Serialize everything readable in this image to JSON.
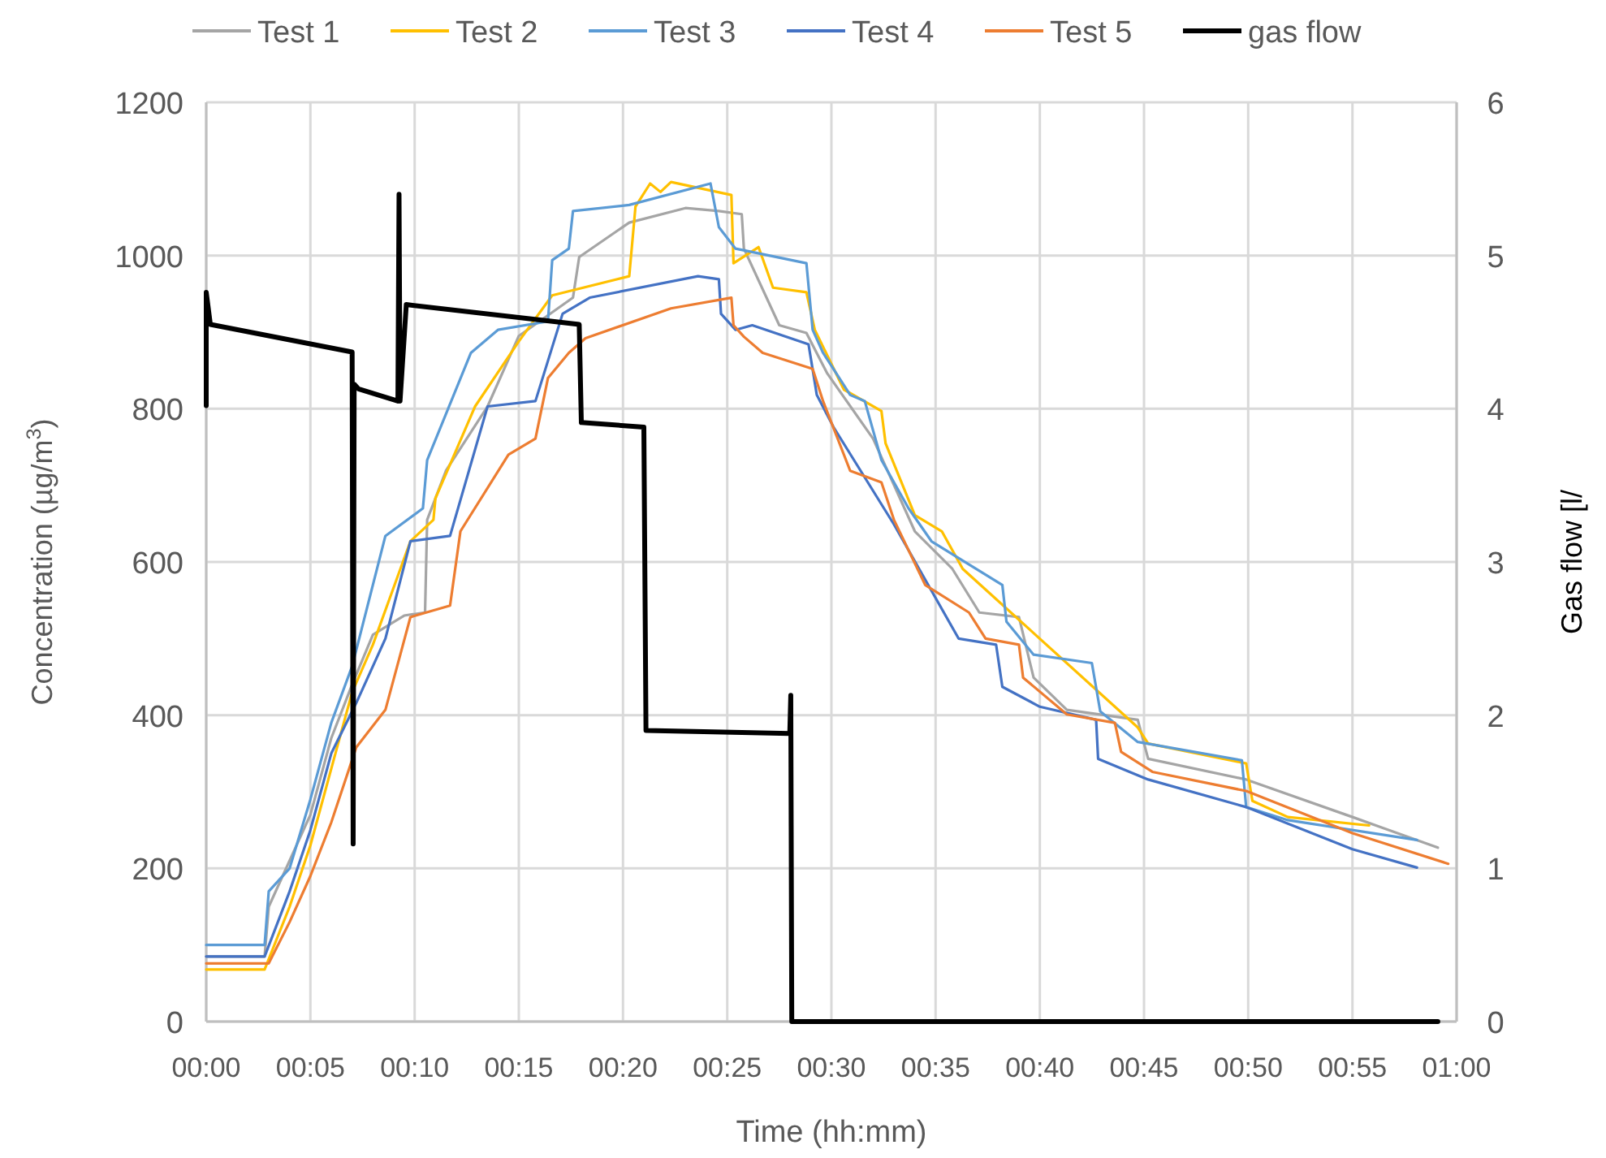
{
  "chart_data": {
    "type": "line",
    "xlabel": "Time (hh:mm)",
    "ylabel": "Concentration (µg/m$^{3}$)",
    "y2label": "Gas flow [l/",
    "xlim": [
      0,
      1
    ],
    "xticks": [
      {
        "value": 0,
        "label": "00:00"
      },
      {
        "value": 0.0833,
        "label": "00:05"
      },
      {
        "value": 0.1667,
        "label": "00:10"
      },
      {
        "value": 0.25,
        "label": "00:15"
      },
      {
        "value": 0.3333,
        "label": "00:20"
      },
      {
        "value": 0.4167,
        "label": "00:25"
      },
      {
        "value": 0.5,
        "label": "00:30"
      },
      {
        "value": 0.5833,
        "label": "00:35"
      },
      {
        "value": 0.6667,
        "label": "00:40"
      },
      {
        "value": 0.75,
        "label": "00:45"
      },
      {
        "value": 0.8333,
        "label": "00:50"
      },
      {
        "value": 0.9167,
        "label": "00:55"
      },
      {
        "value": 1,
        "label": "01:00"
      }
    ],
    "ylim": [
      0,
      1200
    ],
    "yticks": [
      0,
      200,
      400,
      600,
      800,
      1000,
      1200
    ],
    "y2lim": [
      0,
      6
    ],
    "y2ticks": [
      0,
      1,
      2,
      3,
      4,
      5,
      6
    ],
    "grid": true,
    "legend": "top",
    "line_style": "solid",
    "marker": "none",
    "series": [
      {
        "name": "Test 1",
        "color": "#a5a5a5",
        "x": [
          0,
          0.0467,
          0.05,
          0.0833,
          0.1,
          0.1167,
          0.1333,
          0.1583,
          0.175,
          0.1767,
          0.1917,
          0.225,
          0.25,
          0.2933,
          0.2983,
          0.3383,
          0.3833,
          0.41,
          0.4283,
          0.43,
          0.4583,
          0.48,
          0.4967,
          0.5333,
          0.5667,
          0.5967,
          0.6183,
          0.65,
          0.6617,
          0.6883,
          0.745,
          0.7533,
          0.8317,
          0.9167,
          0.985
        ],
        "values": [
          85,
          85,
          150,
          270,
          370,
          440,
          505,
          530,
          534,
          655,
          719,
          803,
          895,
          945,
          998,
          1043,
          1062,
          1058,
          1054,
          1009,
          909,
          899,
          846,
          761,
          640,
          591,
          534,
          528,
          449,
          407,
          394,
          343,
          316,
          267,
          227
        ]
      },
      {
        "name": "Test 2",
        "color": "#ffc000",
        "x": [
          0,
          0.0467,
          0.0667,
          0.0833,
          0.1,
          0.1167,
          0.1333,
          0.1633,
          0.1817,
          0.1833,
          0.215,
          0.25,
          0.2767,
          0.3383,
          0.3433,
          0.355,
          0.3633,
          0.3717,
          0.42,
          0.4217,
          0.4417,
          0.4533,
          0.48,
          0.4867,
          0.51,
          0.54,
          0.5433,
          0.5667,
          0.5883,
          0.605,
          0.745,
          0.7533,
          0.8317,
          0.8367,
          0.865,
          0.93
        ],
        "values": [
          68,
          68,
          150,
          230,
          330,
          430,
          492,
          627,
          655,
          683,
          803,
          888,
          948,
          973,
          1064,
          1094,
          1083,
          1096,
          1079,
          990,
          1011,
          958,
          952,
          903,
          825,
          797,
          755,
          661,
          640,
          591,
          384,
          363,
          337,
          288,
          267,
          256
        ]
      },
      {
        "name": "Test 3",
        "color": "#5b9bd5",
        "x": [
          0,
          0.0467,
          0.05,
          0.0667,
          0.0833,
          0.1,
          0.1167,
          0.1433,
          0.1733,
          0.1767,
          0.2117,
          0.2333,
          0.2733,
          0.2767,
          0.29,
          0.2933,
          0.3383,
          0.4033,
          0.41,
          0.4233,
          0.48,
          0.485,
          0.4933,
          0.515,
          0.5267,
          0.54,
          0.5617,
          0.58,
          0.6367,
          0.64,
          0.6617,
          0.7083,
          0.715,
          0.745,
          0.8283,
          0.8317,
          0.865,
          0.9683
        ],
        "values": [
          100,
          100,
          170,
          200,
          290,
          390,
          464,
          634,
          670,
          733,
          873,
          903,
          914,
          994,
          1009,
          1058,
          1066,
          1094,
          1037,
          1009,
          990,
          903,
          873,
          818,
          810,
          733,
          670,
          627,
          570,
          522,
          479,
          468,
          405,
          365,
          341,
          280,
          263,
          237
        ]
      },
      {
        "name": "Test 4",
        "color": "#4472c4",
        "x": [
          0,
          0.0467,
          0.0667,
          0.0833,
          0.1,
          0.12,
          0.1433,
          0.1633,
          0.195,
          0.225,
          0.2633,
          0.285,
          0.3067,
          0.3933,
          0.41,
          0.4117,
          0.4233,
          0.4367,
          0.4817,
          0.4883,
          0.5017,
          0.55,
          0.575,
          0.6017,
          0.6317,
          0.6367,
          0.6667,
          0.7117,
          0.7133,
          0.7533,
          0.8317,
          0.9167,
          0.9683
        ],
        "values": [
          85,
          85,
          170,
          250,
          350,
          416,
          500,
          627,
          634,
          803,
          810,
          924,
          945,
          973,
          969,
          924,
          903,
          909,
          884,
          818,
          776,
          649,
          577,
          500,
          492,
          437,
          411,
          394,
          343,
          316,
          280,
          225,
          201
        ]
      },
      {
        "name": "Test 5",
        "color": "#ed7d31",
        "x": [
          0,
          0.05,
          0.0667,
          0.0833,
          0.1,
          0.12,
          0.1433,
          0.1633,
          0.195,
          0.2033,
          0.2417,
          0.2633,
          0.2733,
          0.29,
          0.3033,
          0.3717,
          0.42,
          0.4217,
          0.43,
          0.445,
          0.485,
          0.4933,
          0.515,
          0.54,
          0.55,
          0.575,
          0.61,
          0.6233,
          0.65,
          0.6533,
          0.6883,
          0.7267,
          0.7317,
          0.7567,
          0.8317,
          0.9167,
          0.9933
        ],
        "values": [
          76,
          76,
          130,
          190,
          260,
          358,
          407,
          528,
          543,
          640,
          740,
          761,
          840,
          873,
          892,
          931,
          945,
          909,
          894,
          873,
          852,
          810,
          719,
          704,
          655,
          570,
          534,
          500,
          492,
          449,
          401,
          390,
          352,
          326,
          301,
          246,
          206
        ]
      },
      {
        "name": "gas flow",
        "color": "#000000",
        "axis": "y2",
        "x": [
          0,
          0,
          0.0033,
          0.1167,
          0.1175,
          0.1183,
          0.1217,
          0.1533,
          0.1542,
          0.155,
          0.16,
          0.2983,
          0.3,
          0.35,
          0.3517,
          0.4667,
          0.4675,
          0.4683,
          0.985
        ],
        "values": [
          4.02,
          4.76,
          4.55,
          4.37,
          1.16,
          4.16,
          4.13,
          4.05,
          5.4,
          4.05,
          4.68,
          4.55,
          3.91,
          3.88,
          1.9,
          1.88,
          2.13,
          0,
          0
        ]
      }
    ]
  }
}
